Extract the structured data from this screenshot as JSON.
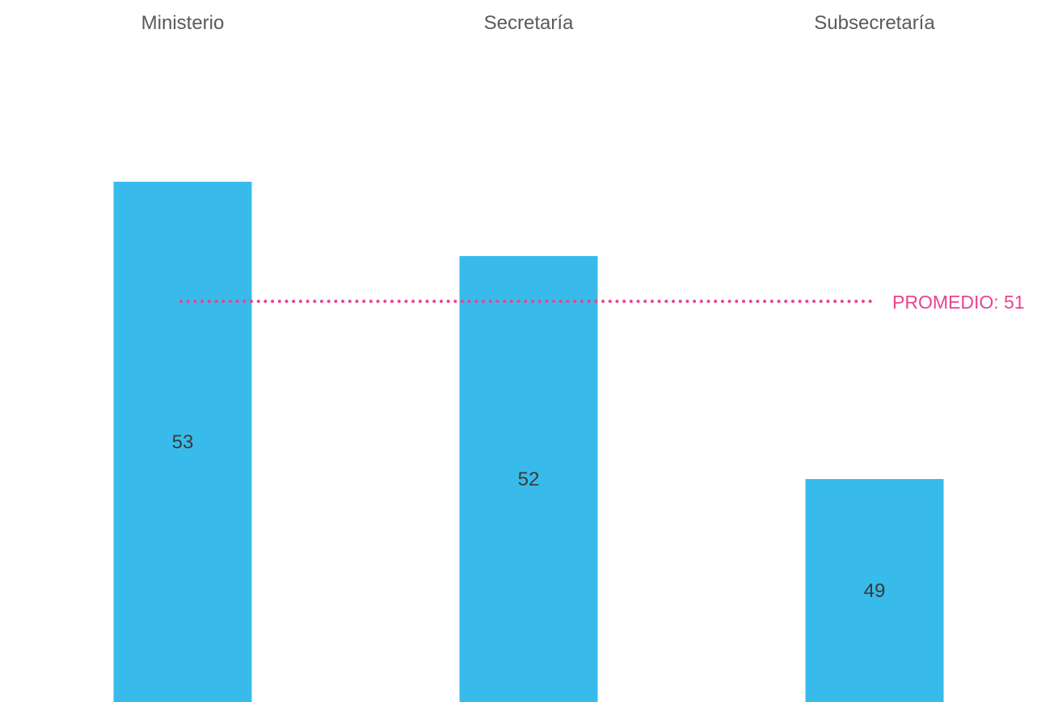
{
  "chart_data": {
    "type": "bar",
    "categories": [
      "Ministerio",
      "Secretaría",
      "Subsecretaría"
    ],
    "values": [
      53,
      52,
      49
    ],
    "value_labels": [
      "53",
      "52",
      "49"
    ],
    "reference_line": {
      "label": "PROMEDIO: 51",
      "value": 51
    },
    "bar_color": "#38BBEB",
    "reference_color": "#E8448F",
    "title": "",
    "xlabel": "",
    "ylabel": ""
  }
}
